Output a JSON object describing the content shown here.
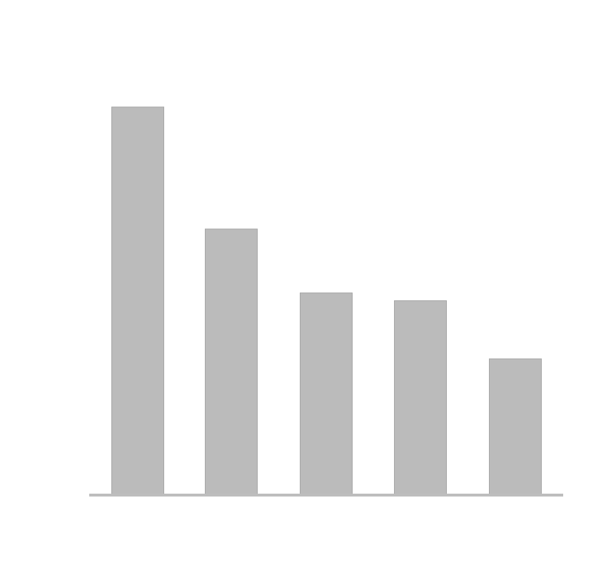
{
  "chart_data": {
    "type": "bar",
    "categories": [
      "",
      "",
      "",
      "",
      ""
    ],
    "values": [
      100,
      68.5,
      52,
      50,
      35
    ],
    "ylim": [
      0,
      100
    ],
    "grid": false,
    "legend": "none",
    "colors": {
      "bar_fill": "#bbbbbb",
      "bar_stroke": "#a6a6a6",
      "baseline": "#bdbdbd",
      "background": "#ffffff"
    }
  }
}
